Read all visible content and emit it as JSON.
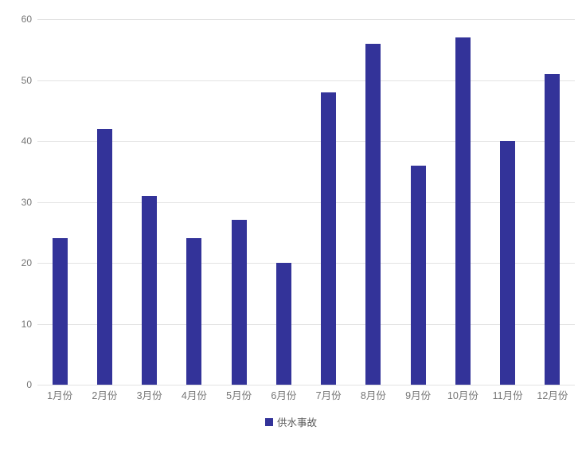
{
  "chart_data": {
    "type": "bar",
    "title": "",
    "xlabel": "",
    "ylabel": "",
    "categories": [
      "1月份",
      "2月份",
      "3月份",
      "4月份",
      "5月份",
      "6月份",
      "7月份",
      "8月份",
      "9月份",
      "10月份",
      "11月份",
      "12月份"
    ],
    "series": [
      {
        "name": "供水事故",
        "color": "#333399",
        "values": [
          24,
          42,
          31,
          24,
          27,
          20,
          48,
          56,
          36,
          57,
          40,
          51
        ]
      }
    ],
    "ylim": [
      0,
      60
    ],
    "ytick_step": 10,
    "yticks": [
      0,
      10,
      20,
      30,
      40,
      50,
      60
    ],
    "grid": true,
    "legend_position": "bottom"
  },
  "colors": {
    "bar": "#333399",
    "gridline": "#e3e3e3",
    "axis_text": "#757575",
    "legend_text": "#595959",
    "background": "#ffffff"
  }
}
